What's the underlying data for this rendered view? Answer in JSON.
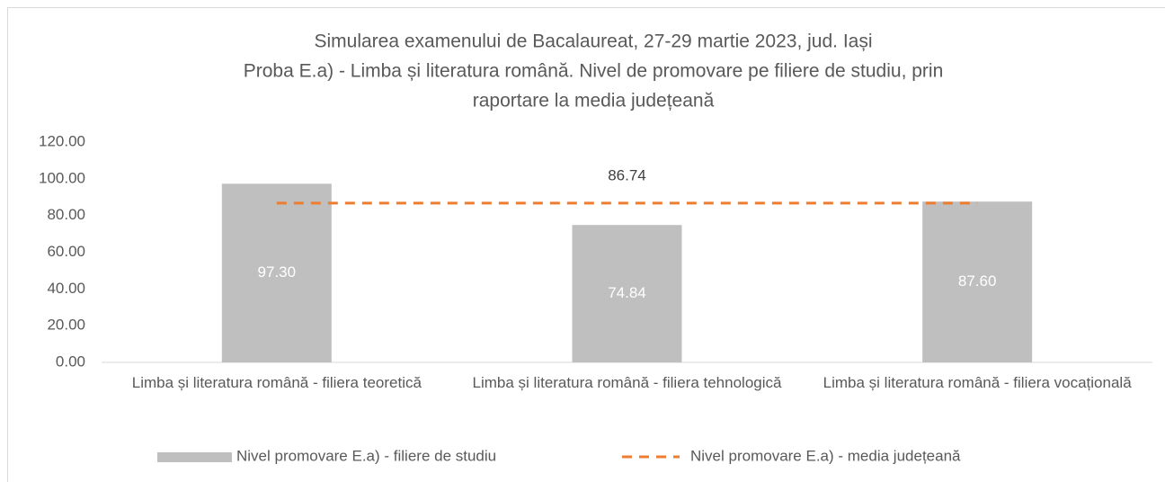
{
  "chart_data": {
    "type": "bar",
    "title": [
      "Simularea examenului de Bacalaureat, 27-29 martie 2023, jud. Iași",
      "Proba E.a) - Limba și literatura română. Nivel de promovare pe filiere de studiu, prin",
      "raportare la media județeană"
    ],
    "categories": [
      "Limba și literatura română - filiera teoretică",
      "Limba și literatura română - filiera tehnologică",
      "Limba și literatura română - filiera vocațională"
    ],
    "series": [
      {
        "name": "Nivel promovare E.a) - filiere de studiu",
        "type": "bar",
        "color": "#bfbfbf",
        "values": [
          97.3,
          74.84,
          87.6
        ],
        "value_labels": [
          "97.30",
          "74.84",
          "87.60"
        ]
      },
      {
        "name": "Nivel promovare E.a) - media județeană",
        "type": "line",
        "color": "#ed7d31",
        "values": [
          86.74,
          86.74,
          86.74
        ]
      }
    ],
    "ylim": [
      0,
      120
    ],
    "yticks": [
      {
        "value": 0,
        "label": "0.00"
      },
      {
        "value": 20,
        "label": "20.00"
      },
      {
        "value": 40,
        "label": "40.00"
      },
      {
        "value": 60,
        "label": "60.00"
      },
      {
        "value": 80,
        "label": "80.00"
      },
      {
        "value": 100,
        "label": "100.00"
      },
      {
        "value": 120,
        "label": "120.00"
      }
    ],
    "grid": false,
    "legend": "bottom"
  }
}
